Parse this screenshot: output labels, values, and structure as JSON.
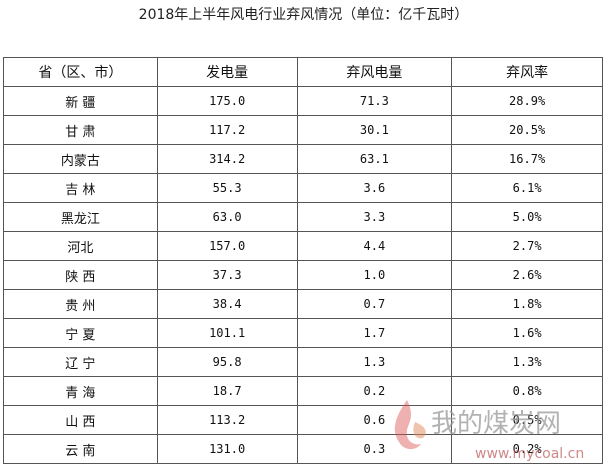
{
  "title": "2018年上半年风电行业弃风情况（单位：亿千瓦时）",
  "table": {
    "header": [
      "省（区、市）",
      "发电量",
      "弃风电量",
      "弃风率"
    ],
    "rows": [
      [
        "新 疆",
        "175.0",
        "71.3",
        "28.9%"
      ],
      [
        "甘 肃",
        "117.2",
        "30.1",
        "20.5%"
      ],
      [
        "内蒙古",
        "314.2",
        "63.1",
        "16.7%"
      ],
      [
        "吉 林",
        "55.3",
        "3.6",
        "6.1%"
      ],
      [
        "黑龙江",
        "63.0",
        "3.3",
        "5.0%"
      ],
      [
        "河北",
        "157.0",
        "4.4",
        "2.7%"
      ],
      [
        "陕 西",
        "37.3",
        "1.0",
        "2.6%"
      ],
      [
        "贵 州",
        "38.4",
        "0.7",
        "1.8%"
      ],
      [
        "宁 夏",
        "101.1",
        "1.7",
        "1.6%"
      ],
      [
        "辽 宁",
        "95.8",
        "1.3",
        "1.3%"
      ],
      [
        "青 海",
        "18.7",
        "0.2",
        "0.8%"
      ],
      [
        "山 西",
        "113.2",
        "0.6",
        "0.5%"
      ],
      [
        "云 南",
        "131.0",
        "0.3",
        "0.2%"
      ]
    ]
  },
  "watermark": {
    "name": "我的煤炭网",
    "url": "www.mycoal.cn"
  }
}
